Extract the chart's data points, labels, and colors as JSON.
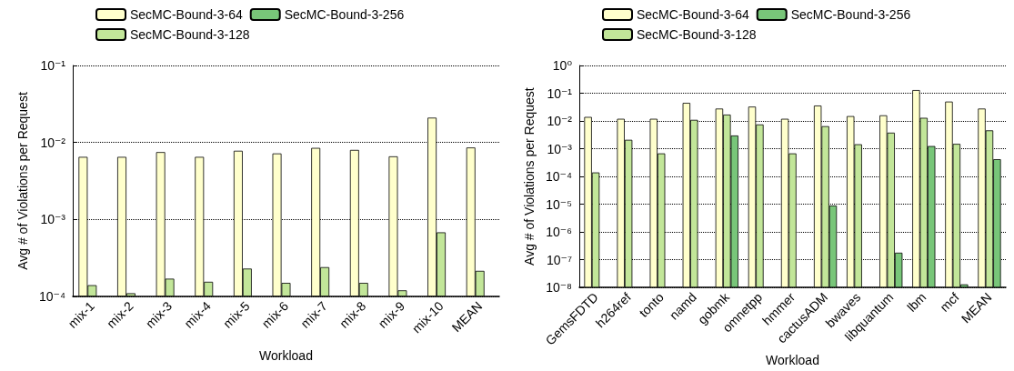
{
  "chart_data": [
    {
      "type": "bar",
      "xlabel": "Workload",
      "ylabel": "Avg # of Violations per Request",
      "categories": [
        "mix-1",
        "mix-2",
        "mix-3",
        "mix-4",
        "mix-5",
        "mix-6",
        "mix-7",
        "mix-8",
        "mix-9",
        "mix-10",
        "MEAN"
      ],
      "series": [
        {
          "name": "SecMC-Bound-3-64",
          "color": "#ffffcc",
          "values": [
            0.0065,
            0.0065,
            0.0075,
            0.0065,
            0.0078,
            0.0072,
            0.0085,
            0.008,
            0.0066,
            0.021,
            0.0086
          ]
        },
        {
          "name": "SecMC-Bound-3-128",
          "color": "#c2e699",
          "values": [
            0.00014,
            0.00011,
            0.00017,
            0.000155,
            0.00023,
            0.00015,
            0.00024,
            0.00015,
            0.00012,
            0.00068,
            0.000215
          ]
        },
        {
          "name": "SecMC-Bound-3-256",
          "color": "#78c679",
          "values": [
            null,
            null,
            null,
            null,
            null,
            null,
            null,
            null,
            null,
            null,
            null
          ]
        }
      ],
      "log": "y",
      "ylim": [
        0.0001,
        0.1
      ],
      "yticks": [
        {
          "value": 0.0001,
          "label": "10⁻⁴"
        },
        {
          "value": 0.001,
          "label": "10⁻³"
        },
        {
          "value": 0.01,
          "label": "10⁻²"
        },
        {
          "value": 0.1,
          "label": "10⁻¹"
        }
      ],
      "grid": "y",
      "legend": "top"
    },
    {
      "type": "bar",
      "xlabel": "Workload",
      "ylabel": "Avg # of Violations per Request",
      "categories": [
        "GemsFDTD",
        "h264ref",
        "tonto",
        "namd",
        "gobmk",
        "omnetpp",
        "hmmer",
        "cactusADM",
        "bwaves",
        "libquantum",
        "lbm",
        "mcf",
        "MEAN"
      ],
      "series": [
        {
          "name": "SecMC-Bound-3-64",
          "color": "#ffffcc",
          "values": [
            0.014,
            0.012,
            0.012,
            0.045,
            0.028,
            0.033,
            0.012,
            0.036,
            0.015,
            0.016,
            0.13,
            0.05,
            0.028
          ]
        },
        {
          "name": "SecMC-Bound-3-128",
          "color": "#c2e699",
          "values": [
            0.00014,
            0.0021,
            0.00068,
            0.011,
            0.017,
            0.0075,
            0.00068,
            0.0065,
            0.00145,
            0.0038,
            0.013,
            0.0015,
            0.0046
          ]
        },
        {
          "name": "SecMC-Bound-3-256",
          "color": "#78c679",
          "values": [
            null,
            null,
            null,
            null,
            0.003,
            null,
            null,
            9e-06,
            null,
            1.8e-07,
            0.00125,
            1.3e-08,
            0.00042
          ]
        }
      ],
      "log": "y",
      "ylim": [
        1e-08,
        1
      ],
      "yticks": [
        {
          "value": 1e-08,
          "label": "10⁻⁸"
        },
        {
          "value": 1e-07,
          "label": "10⁻⁷"
        },
        {
          "value": 1e-06,
          "label": "10⁻⁶"
        },
        {
          "value": 1e-05,
          "label": "10⁻⁵"
        },
        {
          "value": 0.0001,
          "label": "10⁻⁴"
        },
        {
          "value": 0.001,
          "label": "10⁻³"
        },
        {
          "value": 0.01,
          "label": "10⁻²"
        },
        {
          "value": 0.1,
          "label": "10⁻¹"
        },
        {
          "value": 1,
          "label": "10⁰"
        }
      ],
      "grid": "y",
      "legend": "top"
    }
  ]
}
